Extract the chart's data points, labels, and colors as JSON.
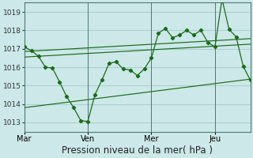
{
  "bg_color": "#cce8e8",
  "grid_color": "#aacece",
  "line_color": "#1a6b1a",
  "title": "Pression niveau de la mer( hPa )",
  "ylim": [
    1012.5,
    1019.5
  ],
  "yticks": [
    1013,
    1014,
    1015,
    1016,
    1017,
    1018,
    1019
  ],
  "xtick_labels": [
    "Mar",
    "Ven",
    "Mer",
    "Jeu"
  ],
  "xtick_positions": [
    0,
    9,
    18,
    27
  ],
  "xlim": [
    0,
    32
  ],
  "main_x": [
    0,
    1,
    2,
    3,
    4,
    5,
    6,
    7,
    8,
    9,
    10,
    11,
    12,
    13,
    14,
    15,
    16,
    17,
    18,
    19,
    20,
    21,
    22,
    23,
    24,
    25,
    26,
    27,
    28,
    29,
    30,
    31,
    32
  ],
  "main_y": [
    1017.1,
    1016.9,
    1016.6,
    1016.0,
    1015.95,
    1015.2,
    1014.4,
    1013.8,
    1013.1,
    1013.05,
    1014.5,
    1015.3,
    1016.2,
    1016.3,
    1015.9,
    1015.85,
    1015.55,
    1015.9,
    1016.5,
    1017.85,
    1018.1,
    1017.6,
    1017.75,
    1018.0,
    1017.75,
    1018.0,
    1017.35,
    1017.1,
    1019.7,
    1018.05,
    1017.65,
    1016.05,
    1015.3
  ],
  "upper_trend_x": [
    0,
    32
  ],
  "upper_trend_y": [
    1016.85,
    1017.55
  ],
  "middle_trend_x": [
    0,
    32
  ],
  "middle_trend_y": [
    1016.55,
    1017.25
  ],
  "lower_trend_x": [
    0,
    32
  ],
  "lower_trend_y": [
    1013.8,
    1015.35
  ],
  "vlines_x": [
    0,
    9,
    18,
    27
  ],
  "vline_color": "#507878",
  "spine_color": "#507878",
  "tick_fontsize": 7,
  "xlabel_fontsize": 8.5,
  "ytick_fontsize": 6.5
}
